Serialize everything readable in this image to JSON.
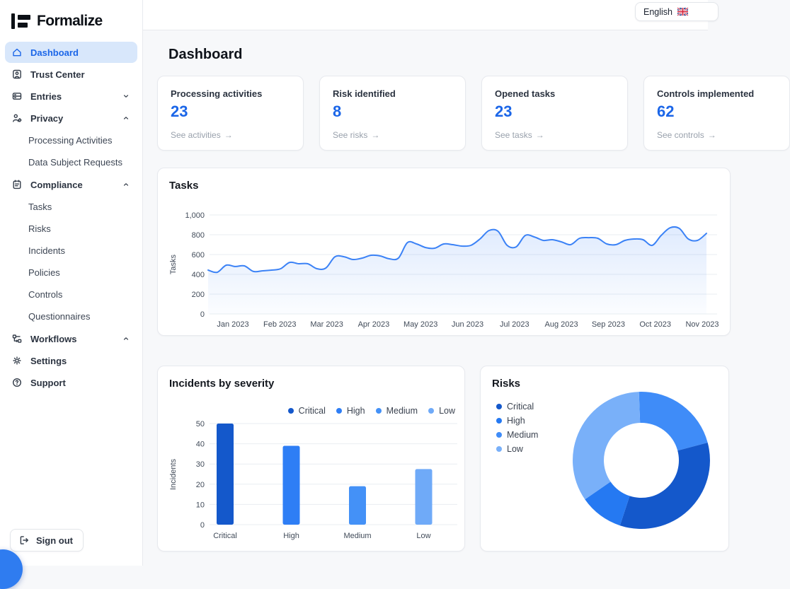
{
  "language": {
    "label": "English",
    "flag_icon": "uk-flag"
  },
  "sidebar": {
    "logo_text": "Formalize",
    "items": [
      {
        "label": "Dashboard",
        "icon": "home-icon",
        "active": true
      },
      {
        "label": "Trust Center",
        "icon": "badge-user-icon"
      },
      {
        "label": "Entries",
        "icon": "rows-icon",
        "chevron": "down"
      },
      {
        "label": "Privacy",
        "icon": "user-gear-icon",
        "chevron": "up"
      },
      {
        "label": "Processing Activities",
        "sub": true
      },
      {
        "label": "Data Subject Requests",
        "sub": true
      },
      {
        "label": "Compliance",
        "icon": "clipboard-icon",
        "chevron": "up"
      },
      {
        "label": "Tasks",
        "sub": true
      },
      {
        "label": "Risks",
        "sub": true
      },
      {
        "label": "Incidents",
        "sub": true
      },
      {
        "label": "Policies",
        "sub": true
      },
      {
        "label": "Controls",
        "sub": true
      },
      {
        "label": "Questionnaires",
        "sub": true
      },
      {
        "label": "Workflows",
        "icon": "workflow-icon",
        "chevron": "up"
      },
      {
        "label": "Settings",
        "icon": "gear-icon"
      },
      {
        "label": "Support",
        "icon": "help-icon"
      }
    ],
    "sign_out_label": "Sign out"
  },
  "page": {
    "title": "Dashboard"
  },
  "stats": [
    {
      "label": "Processing activities",
      "value": "23",
      "link": "See activities"
    },
    {
      "label": "Risk identified",
      "value": "8",
      "link": "See risks"
    },
    {
      "label": "Opened tasks",
      "value": "23",
      "link": "See tasks"
    },
    {
      "label": "Controls implemented",
      "value": "62",
      "link": "See controls"
    }
  ],
  "colors": {
    "accent_blue": "#1b66e8",
    "active_bg": "#d8e7fb",
    "line_blue": "#3b82f6",
    "severity_palette": [
      "#1458cb",
      "#2e7ef5",
      "#4491f7",
      "#6faaf8"
    ],
    "grid": "#e9edf1"
  },
  "chart_data": [
    {
      "id": "tasks",
      "type": "line",
      "title": "Tasks",
      "ylabel": "Tasks",
      "yticks": [
        0,
        200,
        400,
        600,
        800,
        1000
      ],
      "ytick_labels": [
        "0",
        "200",
        "400",
        "600",
        "800",
        "1,000"
      ],
      "ylim": [
        0,
        1000
      ],
      "x_months": [
        "Jan 2023",
        "Feb 2023",
        "Mar 2023",
        "Apr 2023",
        "May 2023",
        "Jun 2023",
        "Jul 2023",
        "Aug 2023",
        "Sep 2023",
        "Oct 2023",
        "Nov 2023"
      ],
      "values": [
        443,
        421,
        493,
        479,
        486,
        429,
        436,
        443,
        457,
        521,
        507,
        507,
        457,
        464,
        578,
        578,
        550,
        564,
        593,
        586,
        557,
        564,
        721,
        707,
        671,
        664,
        707,
        700,
        686,
        693,
        757,
        843,
        835,
        693,
        678,
        793,
        778,
        743,
        750,
        728,
        700,
        764,
        771,
        764,
        707,
        700,
        743,
        757,
        750,
        693,
        793,
        871,
        864,
        757,
        743,
        814
      ],
      "color": "#3b82f6",
      "grid": true,
      "legend_position": "none"
    },
    {
      "id": "incidents",
      "type": "bar",
      "title": "Incidents by severity",
      "ylabel": "Incidents",
      "yticks": [
        0,
        10,
        20,
        30,
        40,
        50
      ],
      "ylim": [
        0,
        50
      ],
      "categories": [
        "Critical",
        "High",
        "Medium",
        "Low"
      ],
      "values": [
        50,
        39,
        19,
        27.5
      ],
      "bar_colors": [
        "#1458cb",
        "#2e7ef5",
        "#4491f7",
        "#6faaf8"
      ],
      "legend": [
        "Critical",
        "High",
        "Medium",
        "Low"
      ],
      "legend_colors": [
        "#1458cb",
        "#2e7ef5",
        "#4491f7",
        "#6faaf8"
      ],
      "legend_position": "top-right",
      "grid": true
    },
    {
      "id": "risks",
      "type": "donut",
      "title": "Risks",
      "legend": [
        "Critical",
        "High",
        "Medium",
        "Low"
      ],
      "legend_colors": [
        "#1458cb",
        "#2579f2",
        "#3f8cf8",
        "#79b0f9"
      ],
      "legend_position": "left",
      "start_angle_deg": -2,
      "segments": [
        {
          "label": "Medium",
          "percent": 21.4,
          "color": "#3f8cf8"
        },
        {
          "label": "Critical",
          "percent": 34.2,
          "color": "#1458cb"
        },
        {
          "label": "High",
          "percent": 10.3,
          "color": "#2579f2"
        },
        {
          "label": "Low",
          "percent": 34.1,
          "color": "#79b0f9"
        }
      ]
    }
  ]
}
